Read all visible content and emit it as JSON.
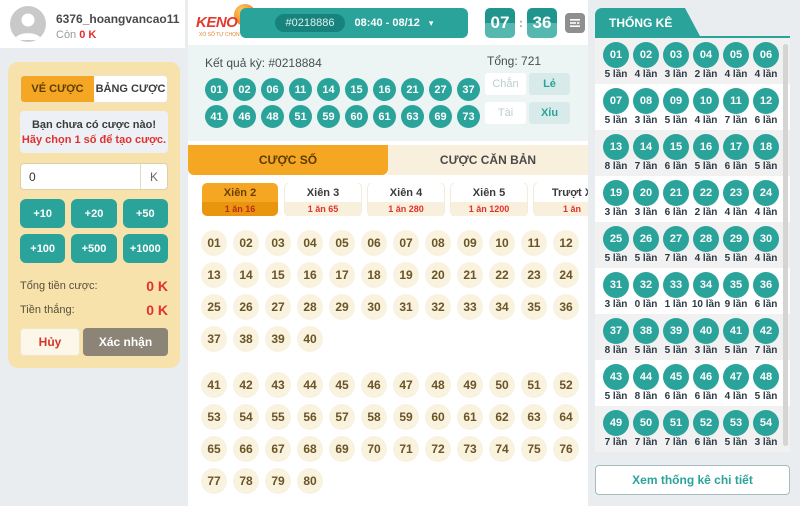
{
  "user": {
    "name": "6376_hoangvancao11",
    "balance_label": "Còn",
    "balance": "0 K"
  },
  "bet_panel": {
    "tab_ticket": "VÉ CƯỢC",
    "tab_board": "BẢNG CƯỢC",
    "notice_line1": "Bạn chưa có cược nào!",
    "notice_line2": "Hãy chọn 1 số để tạo cược.",
    "amount_value": "0",
    "amount_unit": "K",
    "quick_amounts": [
      "+10",
      "+20",
      "+50",
      "+100",
      "+500",
      "+1000"
    ],
    "total_label": "Tổng tiền cược:",
    "total_value": "0 K",
    "win_label": "Tiền thắng:",
    "win_value": "0 K",
    "cancel_label": "Hủy",
    "confirm_label": "Xác nhận"
  },
  "header": {
    "logo_text": "KENO",
    "logo_tagline": "XỔ SỐ TỰ CHỌN",
    "session_id": "#0218886",
    "session_time": "08:40 - 08/12",
    "countdown_minutes": "07",
    "countdown_seconds": "36",
    "countdown_separator": ":"
  },
  "results": {
    "title": "Kết quả kỳ: #0218884",
    "balls_row1": [
      "01",
      "02",
      "06",
      "11",
      "14",
      "15",
      "16",
      "21",
      "27",
      "37"
    ],
    "balls_row2": [
      "41",
      "46",
      "48",
      "51",
      "59",
      "60",
      "61",
      "63",
      "69",
      "73"
    ],
    "total_label": "Tổng: 721",
    "even_label": "Chẵn",
    "odd_label": "Lẻ",
    "over_label": "Tài",
    "under_label": "Xỉu"
  },
  "bet_area": {
    "tab_number": "CƯỢC SỐ",
    "tab_basic": "CƯỢC CĂN BẢN",
    "bet_types": [
      {
        "label": "Xiên 2",
        "payout": "1 ăn 16",
        "active": true
      },
      {
        "label": "Xiên 3",
        "payout": "1 ăn 65",
        "active": false
      },
      {
        "label": "Xiên 4",
        "payout": "1 ăn 280",
        "active": false
      },
      {
        "label": "Xiên 5",
        "payout": "1 ăn 1200",
        "active": false
      },
      {
        "label": "Trượt X",
        "payout": "1 ăn",
        "active": false
      }
    ],
    "numbers_group1": [
      "01",
      "02",
      "03",
      "04",
      "05",
      "06",
      "07",
      "08",
      "09",
      "10",
      "11",
      "12",
      "13",
      "14",
      "15",
      "16",
      "17",
      "18",
      "19",
      "20",
      "21",
      "22",
      "23",
      "24",
      "25",
      "26",
      "27",
      "28",
      "29",
      "30",
      "31",
      "32",
      "33",
      "34",
      "35",
      "36",
      "37",
      "38",
      "39",
      "40"
    ],
    "numbers_group2": [
      "41",
      "42",
      "43",
      "44",
      "45",
      "46",
      "47",
      "48",
      "49",
      "50",
      "51",
      "52",
      "53",
      "54",
      "55",
      "56",
      "57",
      "58",
      "59",
      "60",
      "61",
      "62",
      "63",
      "64",
      "65",
      "66",
      "67",
      "68",
      "69",
      "70",
      "71",
      "72",
      "73",
      "74",
      "75",
      "76",
      "77",
      "78",
      "79",
      "80"
    ]
  },
  "stats": {
    "title": "THỐNG KÊ",
    "detail_button": "Xem thống kê chi tiết",
    "items": [
      {
        "num": "01",
        "count": "5 lần"
      },
      {
        "num": "02",
        "count": "4 lần"
      },
      {
        "num": "03",
        "count": "3 lần"
      },
      {
        "num": "04",
        "count": "2 lần"
      },
      {
        "num": "05",
        "count": "4 lần"
      },
      {
        "num": "06",
        "count": "4 lần"
      },
      {
        "num": "07",
        "count": "5 lần"
      },
      {
        "num": "08",
        "count": "3 lần"
      },
      {
        "num": "09",
        "count": "5 lần"
      },
      {
        "num": "10",
        "count": "4 lần"
      },
      {
        "num": "11",
        "count": "7 lần"
      },
      {
        "num": "12",
        "count": "6 lần"
      },
      {
        "num": "13",
        "count": "8 lần"
      },
      {
        "num": "14",
        "count": "7 lần"
      },
      {
        "num": "15",
        "count": "6 lần"
      },
      {
        "num": "16",
        "count": "5 lần"
      },
      {
        "num": "17",
        "count": "6 lần"
      },
      {
        "num": "18",
        "count": "5 lần"
      },
      {
        "num": "19",
        "count": "3 lần"
      },
      {
        "num": "20",
        "count": "3 lần"
      },
      {
        "num": "21",
        "count": "6 lần"
      },
      {
        "num": "22",
        "count": "2 lần"
      },
      {
        "num": "23",
        "count": "4 lần"
      },
      {
        "num": "24",
        "count": "4 lần"
      },
      {
        "num": "25",
        "count": "5 lần"
      },
      {
        "num": "26",
        "count": "5 lần"
      },
      {
        "num": "27",
        "count": "7 lần"
      },
      {
        "num": "28",
        "count": "4 lần"
      },
      {
        "num": "29",
        "count": "5 lần"
      },
      {
        "num": "30",
        "count": "4 lần"
      },
      {
        "num": "31",
        "count": "3 lần"
      },
      {
        "num": "32",
        "count": "0 lần"
      },
      {
        "num": "33",
        "count": "1 lần"
      },
      {
        "num": "34",
        "count": "10 lần"
      },
      {
        "num": "35",
        "count": "9 lần"
      },
      {
        "num": "36",
        "count": "6 lần"
      },
      {
        "num": "37",
        "count": "8 lần"
      },
      {
        "num": "38",
        "count": "5 lần"
      },
      {
        "num": "39",
        "count": "5 lần"
      },
      {
        "num": "40",
        "count": "3 lần"
      },
      {
        "num": "41",
        "count": "5 lần"
      },
      {
        "num": "42",
        "count": "7 lần"
      },
      {
        "num": "43",
        "count": "5 lần"
      },
      {
        "num": "44",
        "count": "8 lần"
      },
      {
        "num": "45",
        "count": "6 lần"
      },
      {
        "num": "46",
        "count": "6 lần"
      },
      {
        "num": "47",
        "count": "4 lần"
      },
      {
        "num": "48",
        "count": "5 lần"
      },
      {
        "num": "49",
        "count": "7 lần"
      },
      {
        "num": "50",
        "count": "7 lần"
      },
      {
        "num": "51",
        "count": "7 lần"
      },
      {
        "num": "52",
        "count": "6 lần"
      },
      {
        "num": "53",
        "count": "5 lần"
      },
      {
        "num": "54",
        "count": "3 lần"
      }
    ]
  },
  "icons": {
    "caret_down": "▾"
  },
  "colors": {
    "teal": "#2aa39b",
    "orange": "#f5a623",
    "red": "#e0312e",
    "tan": "#f8e2ab"
  }
}
